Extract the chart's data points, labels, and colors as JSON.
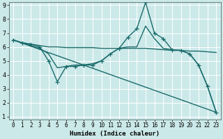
{
  "xlabel": "Humidex (Indice chaleur)",
  "ylabel": "",
  "xlim": [
    -0.5,
    23.5
  ],
  "ylim": [
    0.8,
    9.2
  ],
  "xticks": [
    0,
    1,
    2,
    3,
    4,
    5,
    6,
    7,
    8,
    9,
    10,
    11,
    12,
    13,
    14,
    15,
    16,
    17,
    18,
    19,
    20,
    21,
    22,
    23
  ],
  "yticks": [
    1,
    2,
    3,
    4,
    5,
    6,
    7,
    8,
    9
  ],
  "background_color": "#cce9e9",
  "line_color": "#1a6b6b",
  "grid_color": "#ffffff",
  "lines": [
    {
      "x": [
        0,
        1,
        2,
        3,
        4,
        5,
        6,
        7,
        8,
        9,
        10,
        11,
        12,
        13,
        14,
        15,
        16,
        17,
        18,
        19,
        20,
        21,
        22,
        23
      ],
      "y": [
        6.5,
        6.3,
        6.2,
        6.1,
        6.0,
        6.0,
        5.95,
        5.95,
        5.95,
        5.95,
        5.9,
        5.9,
        5.9,
        5.9,
        5.9,
        5.9,
        5.85,
        5.8,
        5.75,
        5.75,
        5.7,
        5.7,
        5.65,
        5.6
      ],
      "marker": false
    },
    {
      "x": [
        0,
        1,
        2,
        3,
        4,
        5,
        6,
        7,
        8,
        9,
        10,
        11,
        12,
        13,
        14,
        15,
        16,
        17,
        18,
        19,
        20,
        21,
        22,
        23
      ],
      "y": [
        6.5,
        6.3,
        6.2,
        6.0,
        5.0,
        3.5,
        4.6,
        4.6,
        4.7,
        4.7,
        5.0,
        5.5,
        5.9,
        6.7,
        7.3,
        9.2,
        7.0,
        6.6,
        5.8,
        5.75,
        5.5,
        4.7,
        3.2,
        1.3
      ],
      "marker": true
    },
    {
      "x": [
        0,
        1,
        2,
        3,
        4,
        5,
        6,
        7,
        8,
        9,
        10,
        11,
        12,
        13,
        14,
        15,
        16,
        17,
        18,
        19,
        20,
        21,
        22,
        23
      ],
      "y": [
        6.5,
        6.3,
        6.1,
        5.9,
        5.5,
        4.5,
        4.6,
        4.7,
        4.7,
        4.8,
        5.0,
        5.5,
        5.9,
        6.0,
        6.0,
        7.5,
        6.6,
        5.9,
        5.8,
        5.75,
        5.5,
        4.7,
        3.2,
        1.3
      ],
      "marker": false
    },
    {
      "x": [
        0,
        23
      ],
      "y": [
        6.5,
        1.3
      ],
      "marker": false
    }
  ],
  "marker_style": "+",
  "markersize": 4,
  "linewidth": 1.0
}
